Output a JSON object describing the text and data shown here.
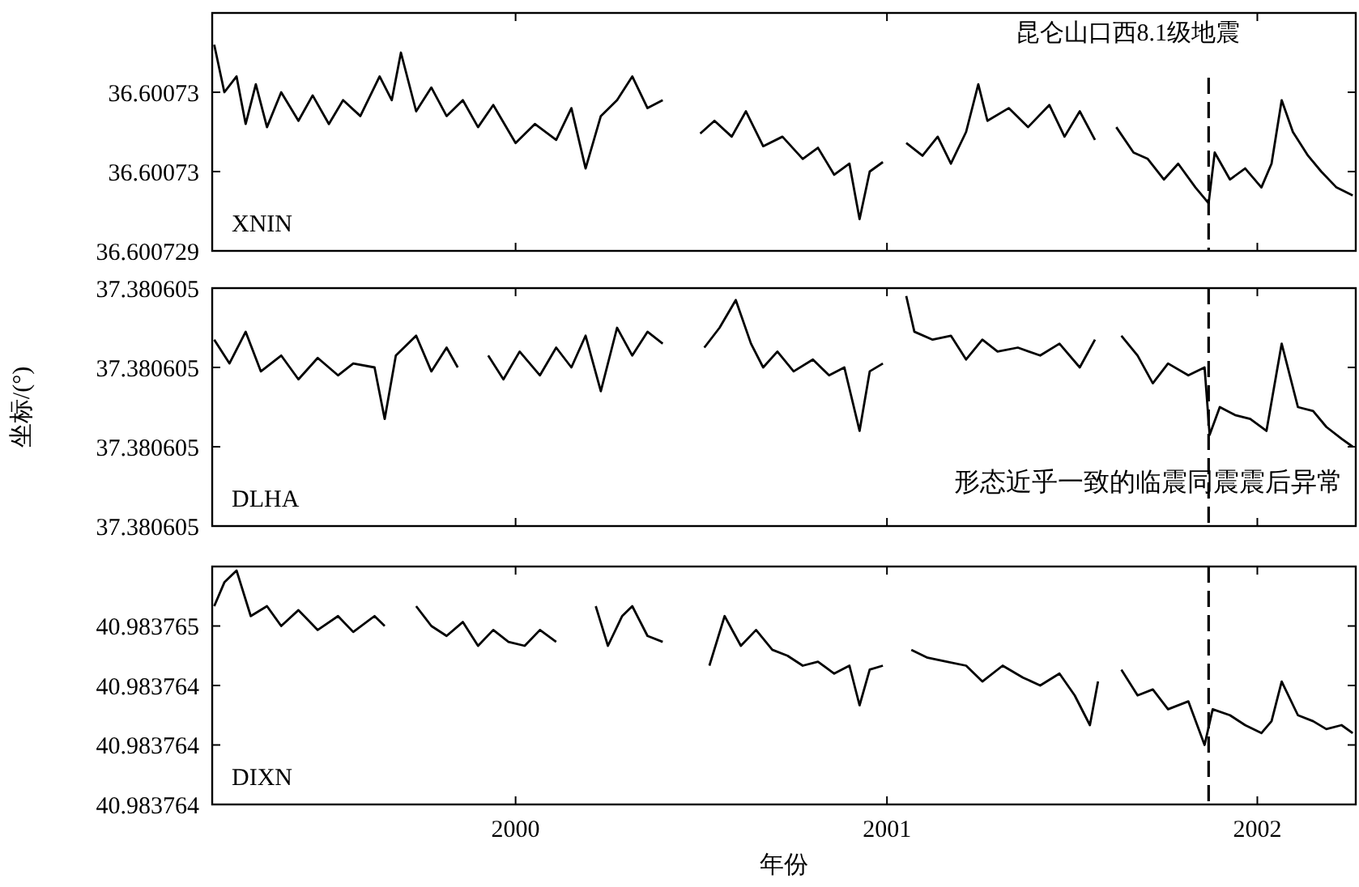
{
  "chart_data": [
    {
      "type": "line",
      "x": [
        "1999-03-10",
        "1999-03-20",
        "1999-04-01",
        "1999-04-10",
        "1999-04-20",
        "1999-05-01",
        "1999-05-15",
        "1999-06-01",
        "1999-06-15",
        "1999-07-01",
        "1999-07-15",
        "1999-08-01",
        "1999-08-20",
        "1999-09-01",
        "1999-09-10",
        "1999-09-25",
        "1999-10-10",
        "1999-10-25",
        "1999-11-10",
        "1999-11-25",
        "1999-12-10",
        "2000-01-01",
        "2000-01-20",
        "2000-02-10",
        "2000-02-25",
        "2000-03-10",
        "2000-03-25",
        "2000-04-10",
        "2000-04-25",
        "2000-05-10",
        "2000-05-25",
        "2000-06-10",
        "2000-07-01",
        "2000-07-15",
        "2000-08-01",
        "2000-08-15",
        "2000-09-01",
        "2000-09-20",
        "2000-10-10",
        "2000-10-25",
        "2000-11-10",
        "2000-11-25",
        "2000-12-05",
        "2000-12-15",
        "2000-12-28",
        "2001-01-10",
        "2001-01-20",
        "2001-02-05",
        "2001-02-20",
        "2001-03-05",
        "2001-03-20",
        "2001-04-01",
        "2001-04-10",
        "2001-05-01",
        "2001-05-20",
        "2001-06-10",
        "2001-06-25",
        "2001-07-10",
        "2001-07-25",
        "2001-08-05",
        "2001-08-15",
        "2001-09-01",
        "2001-09-15",
        "2001-10-01",
        "2001-10-15",
        "2001-11-01",
        "2001-11-14",
        "2001-11-20",
        "2001-12-05",
        "2001-12-20",
        "2002-01-05",
        "2002-01-15",
        "2002-01-25",
        "2002-02-05",
        "2002-02-20",
        "2002-03-05",
        "2002-03-20",
        "2002-04-05"
      ],
      "series": [
        {
          "color": "#000000",
          "values": [
            36.6007303,
            36.60073,
            36.6007301,
            36.6007298,
            36.60073005,
            36.60072978,
            36.60073,
            36.60072982,
            36.60072998,
            36.6007298,
            36.60072995,
            36.60072985,
            36.6007301,
            36.60072995,
            36.60073025,
            36.60072988,
            36.60073003,
            36.60072985,
            36.60072995,
            36.60072978,
            36.60072992,
            36.60072968,
            36.6007298,
            36.6007297,
            36.6007299,
            36.60072952,
            36.60072985,
            36.60072995,
            36.6007301,
            36.6007299,
            36.60072995,
            null,
            36.60072974,
            36.60072982,
            36.60072972,
            36.60072988,
            36.60072966,
            36.60072972,
            36.60072958,
            36.60072965,
            36.60072948,
            36.60072955,
            36.6007292,
            36.6007295,
            36.60072956,
            null,
            36.60072968,
            36.6007296,
            36.60072972,
            36.60072955,
            36.60072975,
            36.60073005,
            36.60072982,
            36.6007299,
            36.60072978,
            36.60072992,
            36.60072972,
            36.60072988,
            36.6007297,
            null,
            36.60072978,
            36.60072962,
            36.60072958,
            36.60072945,
            36.60072955,
            36.6007294,
            36.6007293,
            36.60072962,
            36.60072945,
            36.60072952,
            36.6007294,
            36.60072955,
            36.60072995,
            36.60072975,
            36.6007296,
            36.6007295,
            36.6007294,
            36.60072935
          ]
        }
      ],
      "xlim": [
        "1999-03-08",
        "2002-04-08"
      ],
      "xticks": [
        {
          "value": "2000",
          "label": null
        },
        {
          "value": "2001",
          "label": null
        },
        {
          "value": "2002",
          "label": null
        }
      ],
      "ylim": [
        36.600729,
        36.6007305
      ],
      "yticks": [
        {
          "value": 36.600729,
          "label": "36.600729"
        },
        {
          "value": 36.6007295,
          "label": "36.60073"
        },
        {
          "value": 36.60073,
          "label": "36.60073"
        }
      ],
      "tick_labels": "y",
      "grid": false,
      "ref_lines": [
        {
          "axis": "x",
          "value": "2001-11-14",
          "label": "昆仑山口西8.1级地震",
          "color": "#000000",
          "line_style": "dashed"
        }
      ],
      "annotations": [
        "XNIN"
      ]
    },
    {
      "type": "line",
      "x": [
        "1999-03-10",
        "1999-03-25",
        "1999-04-10",
        "1999-04-25",
        "1999-05-15",
        "1999-06-01",
        "1999-06-20",
        "1999-07-10",
        "1999-07-25",
        "1999-08-15",
        "1999-08-25",
        "1999-09-05",
        "1999-09-25",
        "1999-10-10",
        "1999-10-25",
        "1999-11-05",
        "1999-11-20",
        "1999-12-05",
        "1999-12-20",
        "2000-01-05",
        "2000-01-25",
        "2000-02-10",
        "2000-02-25",
        "2000-03-10",
        "2000-03-25",
        "2000-04-10",
        "2000-04-25",
        "2000-05-10",
        "2000-05-25",
        "2000-06-15",
        "2000-07-05",
        "2000-07-20",
        "2000-08-05",
        "2000-08-20",
        "2000-09-01",
        "2000-09-15",
        "2000-10-01",
        "2000-10-20",
        "2000-11-05",
        "2000-11-20",
        "2000-12-05",
        "2000-12-15",
        "2000-12-28",
        "2001-01-10",
        "2001-01-20",
        "2001-01-28",
        "2001-02-15",
        "2001-03-05",
        "2001-03-20",
        "2001-04-05",
        "2001-04-20",
        "2001-05-10",
        "2001-06-01",
        "2001-06-20",
        "2001-07-10",
        "2001-07-25",
        "2001-08-10",
        "2001-08-20",
        "2001-09-05",
        "2001-09-20",
        "2001-10-05",
        "2001-10-25",
        "2001-11-10",
        "2001-11-15",
        "2001-11-25",
        "2001-12-10",
        "2001-12-25",
        "2002-01-10",
        "2002-01-25",
        "2002-02-10",
        "2002-02-25",
        "2002-03-10",
        "2002-03-25",
        "2002-04-05"
      ],
      "series": [
        {
          "color": "#000000",
          "values": [
            37.380605235,
            37.380605205,
            37.380605245,
            37.380605195,
            37.380605215,
            37.380605185,
            37.380605212,
            37.38060519,
            37.380605205,
            37.3806052,
            37.380605135,
            37.380605215,
            37.38060524,
            37.380605195,
            37.380605225,
            37.3806052,
            null,
            37.380605215,
            37.380605185,
            37.38060522,
            37.38060519,
            37.380605225,
            37.3806052,
            37.38060524,
            37.38060517,
            37.38060525,
            37.380605215,
            37.380605245,
            37.38060523,
            null,
            37.380605225,
            37.38060525,
            37.380605285,
            37.38060523,
            37.3806052,
            37.38060522,
            37.380605195,
            37.38060521,
            37.38060519,
            37.3806052,
            37.38060512,
            37.380605195,
            37.380605205,
            null,
            37.38060529,
            37.380605245,
            37.380605235,
            37.38060524,
            37.38060521,
            37.380605235,
            37.38060522,
            37.380605225,
            37.380605215,
            37.38060523,
            37.3806052,
            37.380605235,
            null,
            37.38060524,
            37.380605215,
            37.38060518,
            37.380605205,
            37.38060519,
            37.3806052,
            37.380605115,
            37.38060515,
            37.38060514,
            37.380605135,
            37.38060512,
            37.38060523,
            37.38060515,
            37.380605145,
            37.380605125,
            37.38060511,
            37.3806051
          ]
        }
      ],
      "xlim": [
        "1999-03-08",
        "2002-04-08"
      ],
      "xticks": [
        {
          "value": "2000",
          "label": null
        },
        {
          "value": "2001",
          "label": null
        },
        {
          "value": "2002",
          "label": null
        }
      ],
      "ylim": [
        37.380605,
        37.3806053
      ],
      "yticks": [
        {
          "value": 37.380605,
          "label": "37.380605"
        },
        {
          "value": 37.3806051,
          "label": "37.380605"
        },
        {
          "value": 37.3806052,
          "label": "37.380605"
        },
        {
          "value": 37.3806053,
          "label": "37.380605"
        }
      ],
      "ylabel": "坐标/(°)",
      "tick_labels": "y",
      "grid": false,
      "ref_lines": [
        {
          "axis": "x",
          "value": "2001-11-14",
          "color": "#000000",
          "line_style": "dashed"
        }
      ],
      "annotations": [
        "DLHA",
        "形态近乎一致的临震同震震后异常"
      ]
    },
    {
      "type": "line",
      "x": [
        "1999-03-10",
        "1999-03-20",
        "1999-04-01",
        "1999-04-15",
        "1999-05-01",
        "1999-05-15",
        "1999-06-01",
        "1999-06-20",
        "1999-07-10",
        "1999-07-25",
        "1999-08-15",
        "1999-08-25",
        "1999-09-10",
        "1999-09-25",
        "1999-10-10",
        "1999-10-25",
        "1999-11-10",
        "1999-11-25",
        "1999-12-10",
        "1999-12-25",
        "2000-01-10",
        "2000-01-25",
        "2000-02-10",
        "2000-02-25",
        "2000-03-20",
        "2000-04-01",
        "2000-04-15",
        "2000-04-25",
        "2000-05-10",
        "2000-05-25",
        "2000-06-15",
        "2000-07-10",
        "2000-07-25",
        "2000-08-10",
        "2000-08-25",
        "2000-09-10",
        "2000-09-25",
        "2000-10-10",
        "2000-10-25",
        "2000-11-10",
        "2000-11-25",
        "2000-12-05",
        "2000-12-15",
        "2000-12-28",
        "2001-01-15",
        "2001-01-25",
        "2001-02-10",
        "2001-03-01",
        "2001-03-20",
        "2001-04-05",
        "2001-04-25",
        "2001-05-15",
        "2001-06-01",
        "2001-06-20",
        "2001-07-05",
        "2001-07-20",
        "2001-07-28",
        "2001-08-10",
        "2001-08-20",
        "2001-09-05",
        "2001-09-20",
        "2001-10-05",
        "2001-10-25",
        "2001-11-10",
        "2001-11-18",
        "2001-12-05",
        "2001-12-20",
        "2002-01-05",
        "2002-01-15",
        "2002-01-25",
        "2002-02-10",
        "2002-02-25",
        "2002-03-10",
        "2002-03-25",
        "2002-04-05"
      ],
      "series": [
        {
          "color": "#000000",
          "values": [
            40.9837647,
            40.98376482,
            40.98376488,
            40.98376465,
            40.9837647,
            40.9837646,
            40.98376468,
            40.98376458,
            40.98376465,
            40.98376457,
            40.98376465,
            40.9837646,
            null,
            40.9837647,
            40.9837646,
            40.98376455,
            40.98376462,
            40.9837645,
            40.98376458,
            40.98376452,
            40.9837645,
            40.98376458,
            40.98376452,
            null,
            40.9837647,
            40.9837645,
            40.98376465,
            40.9837647,
            40.98376455,
            40.98376452,
            null,
            40.9837644,
            40.98376465,
            40.9837645,
            40.98376458,
            40.98376448,
            40.98376445,
            40.9837644,
            40.98376442,
            40.98376436,
            40.9837644,
            40.9837642,
            40.98376438,
            40.9837644,
            null,
            40.98376448,
            40.98376444,
            40.98376442,
            40.9837644,
            40.98376432,
            40.9837644,
            40.98376434,
            40.9837643,
            40.98376436,
            40.98376425,
            40.9837641,
            40.98376432,
            null,
            40.98376438,
            40.98376425,
            40.98376428,
            40.98376418,
            40.98376422,
            40.983764,
            40.98376418,
            40.98376415,
            40.9837641,
            40.98376406,
            40.98376412,
            40.98376432,
            40.98376415,
            40.98376412,
            40.98376408,
            40.9837641,
            40.98376406
          ]
        }
      ],
      "xlim": [
        "1999-03-08",
        "2002-04-08"
      ],
      "xticks": [
        {
          "value": "2000",
          "label": "2000"
        },
        {
          "value": "2001",
          "label": "2001"
        },
        {
          "value": "2002",
          "label": "2002"
        }
      ],
      "ylim": [
        40.9837637,
        40.9837649
      ],
      "yticks": [
        {
          "value": 40.9837637,
          "label": "40.983764"
        },
        {
          "value": 40.983764,
          "label": "40.983764"
        },
        {
          "value": 40.9837643,
          "label": "40.983764"
        },
        {
          "value": 40.9837646,
          "label": "40.983765"
        }
      ],
      "xlabel": "年份",
      "grid": false,
      "ref_lines": [
        {
          "axis": "x",
          "value": "2001-11-14",
          "color": "#000000",
          "line_style": "dashed"
        }
      ],
      "annotations": [
        "DIXN"
      ]
    }
  ]
}
